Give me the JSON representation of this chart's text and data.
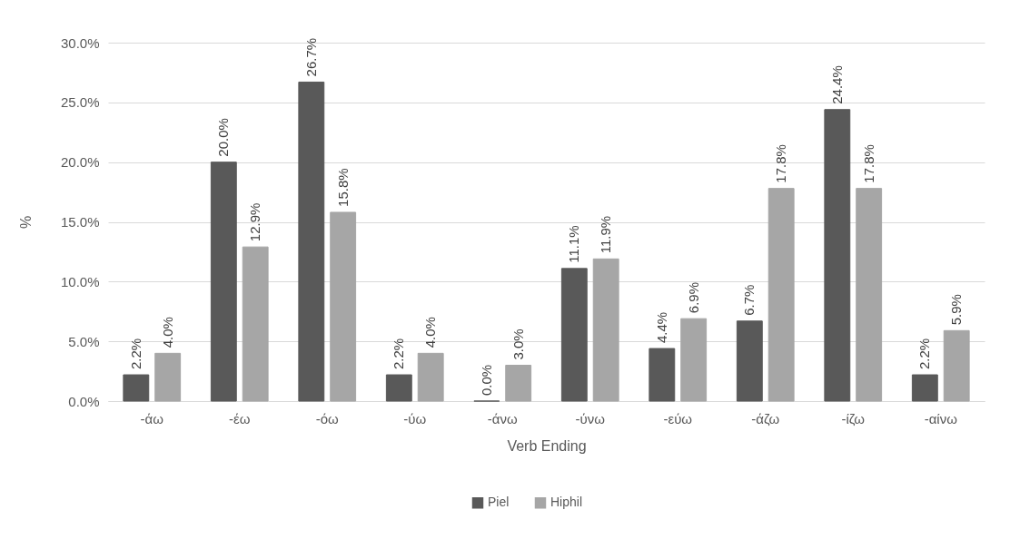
{
  "chart_data": {
    "type": "bar",
    "xlabel": "Verb Ending",
    "ylabel": "%",
    "categories": [
      "-άω",
      "-έω",
      "-όω",
      "-ύω",
      "-άνω",
      "-ύνω",
      "-εύω",
      "-άζω",
      "-ίζω",
      "-αίνω"
    ],
    "series": [
      {
        "name": "Piel",
        "color": "#595959",
        "values": [
          2.2,
          20.0,
          26.7,
          2.2,
          0.0,
          11.1,
          4.4,
          6.7,
          24.4,
          2.2
        ],
        "value_labels": [
          "2.2%",
          "20.0%",
          "26.7%",
          "2.2%",
          "0.0%",
          "11.1%",
          "4.4%",
          "6.7%",
          "24.4%",
          "2.2%"
        ]
      },
      {
        "name": "Hiphil",
        "color": "#a6a6a6",
        "values": [
          4.0,
          12.9,
          15.8,
          4.0,
          3.0,
          11.9,
          6.9,
          17.8,
          17.8,
          5.9
        ],
        "value_labels": [
          "4.0%",
          "12.9%",
          "15.8%",
          "4.0%",
          "3.0%",
          "11.9%",
          "6.9%",
          "17.8%",
          "17.8%",
          "5.9%"
        ]
      }
    ],
    "ylim": [
      0,
      30
    ],
    "yticks": [
      {
        "value": 0,
        "label": "0.0%"
      },
      {
        "value": 5,
        "label": "5.0%"
      },
      {
        "value": 10,
        "label": "10.0%"
      },
      {
        "value": 15,
        "label": "15.0%"
      },
      {
        "value": 20,
        "label": "20.0%"
      },
      {
        "value": 25,
        "label": "25.0%"
      },
      {
        "value": 30,
        "label": "30.0%"
      }
    ],
    "grid": "y",
    "legend": "bottom"
  }
}
